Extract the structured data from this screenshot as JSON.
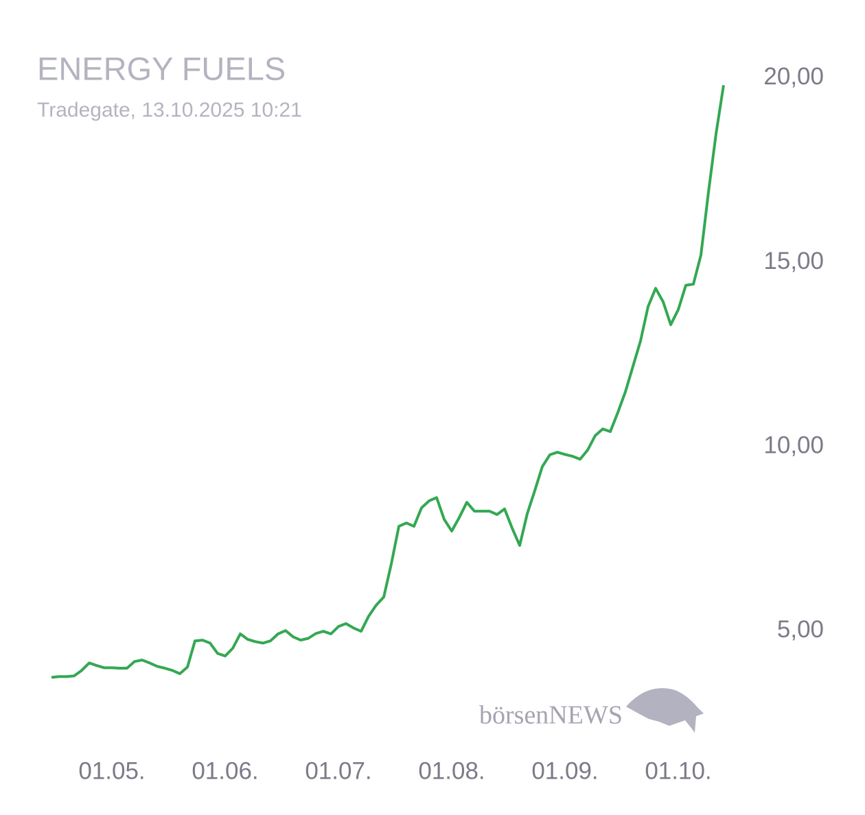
{
  "chart_data": {
    "type": "line",
    "title": "ENERGY FUELS",
    "subtitle": "Tradegate, 13.10.2025 10:21",
    "watermark": "börsenNEWS",
    "categories": [
      null,
      null,
      null,
      null,
      null,
      null,
      null,
      null,
      "01.05.",
      null,
      null,
      null,
      null,
      null,
      null,
      null,
      null,
      null,
      null,
      null,
      null,
      null,
      null,
      "01.06.",
      null,
      null,
      null,
      null,
      null,
      null,
      null,
      null,
      null,
      null,
      null,
      null,
      null,
      null,
      "01.07.",
      null,
      null,
      null,
      null,
      null,
      null,
      null,
      null,
      null,
      null,
      null,
      null,
      null,
      null,
      "01.08.",
      null,
      null,
      null,
      null,
      null,
      null,
      null,
      null,
      null,
      null,
      null,
      null,
      null,
      null,
      "01.09.",
      null,
      null,
      null,
      null,
      null,
      null,
      null,
      null,
      null,
      null,
      null,
      null,
      null,
      null,
      "01.10.",
      null,
      null,
      null,
      null,
      null,
      null
    ],
    "series": [
      {
        "color": "#34a853",
        "values": [
          3.74,
          3.76,
          3.76,
          3.78,
          3.93,
          4.13,
          4.06,
          4.0,
          4.0,
          3.99,
          3.99,
          4.17,
          4.21,
          4.13,
          4.04,
          3.99,
          3.93,
          3.84,
          4.02,
          4.73,
          4.75,
          4.67,
          4.39,
          4.32,
          4.53,
          4.92,
          4.77,
          4.71,
          4.67,
          4.73,
          4.92,
          5.01,
          4.84,
          4.75,
          4.8,
          4.93,
          4.99,
          4.92,
          5.12,
          5.2,
          5.08,
          4.99,
          5.4,
          5.7,
          5.92,
          6.82,
          7.84,
          7.93,
          7.84,
          8.34,
          8.53,
          8.62,
          8.03,
          7.71,
          8.08,
          8.49,
          8.25,
          8.25,
          8.25,
          8.16,
          8.31,
          7.79,
          7.32,
          8.18,
          8.81,
          9.46,
          9.78,
          9.85,
          9.79,
          9.74,
          9.66,
          9.91,
          10.3,
          10.48,
          10.41,
          10.93,
          11.49,
          12.18,
          12.87,
          13.8,
          14.3,
          13.93,
          13.31,
          13.72,
          14.38,
          14.41,
          15.2,
          16.91,
          18.49,
          19.81
        ]
      }
    ],
    "ylim": [
      2.5,
      21.5
    ],
    "yticks": [
      {
        "value": 5,
        "label": "5,00"
      },
      {
        "value": 10,
        "label": "10,00"
      },
      {
        "value": 15,
        "label": "15,00"
      },
      {
        "value": 20,
        "label": "20,00"
      }
    ],
    "grid": false
  }
}
